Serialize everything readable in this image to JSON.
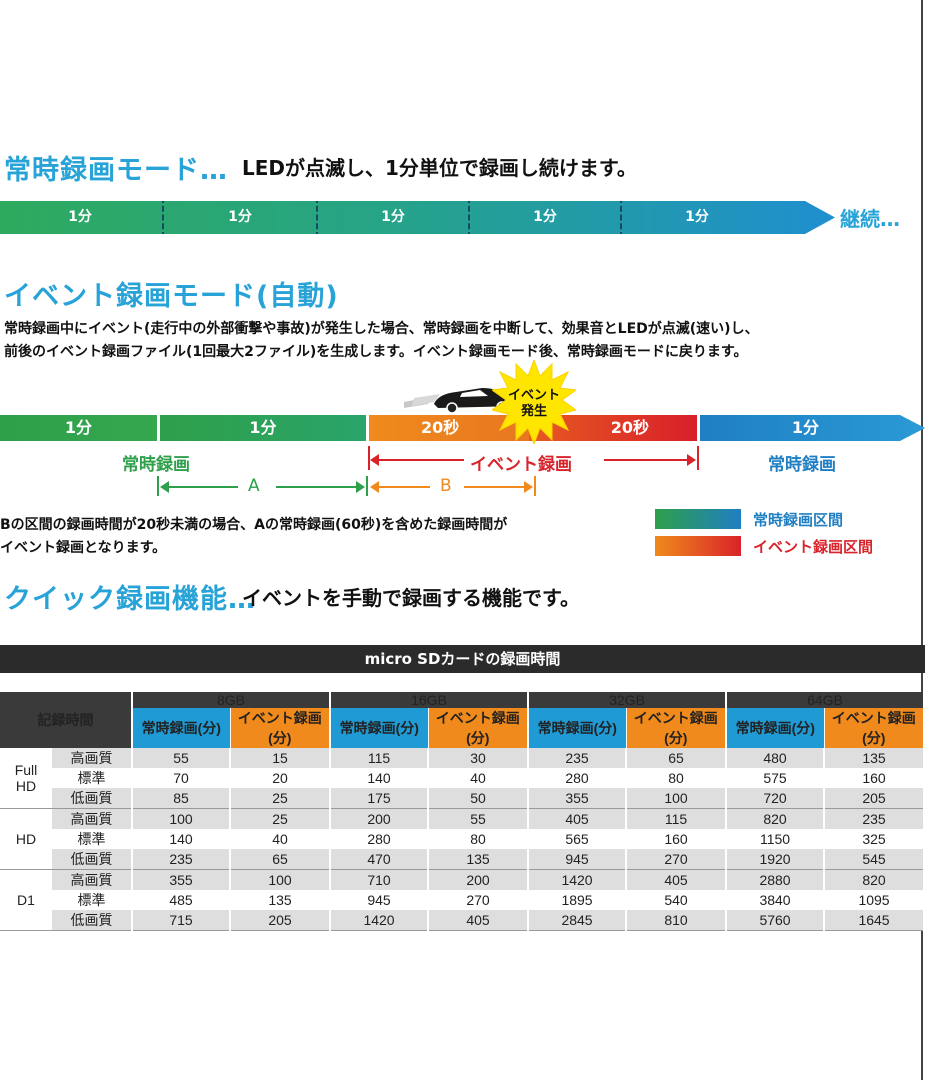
{
  "section1": {
    "title": "常時録画モード…",
    "description": "LEDが点滅し、1分単位で録画し続けます。",
    "segments": [
      "1分",
      "1分",
      "1分",
      "1分",
      "1分"
    ],
    "continue_label": "継続…"
  },
  "section2": {
    "title": "イベント録画モード(自動)",
    "paragraph_line1": "常時録画中にイベント(走行中の外部衝撃や事故)が発生した場合、常時録画を中断して、効果音とLEDが点滅(速い)し、",
    "paragraph_line2": "前後のイベント録画ファイル(1回最大2ファイル)を生成します。イベント録画モード後、常時録画モードに戻ります。",
    "timeline": {
      "seg1": "1分",
      "seg2": "1分",
      "seg3": "20秒",
      "seg4": "20秒",
      "seg5": "1分",
      "burst_line1": "イベント",
      "burst_line2": "発生",
      "label_left": "常時録画",
      "label_event": "イベント録画",
      "label_right": "常時録画",
      "marker_a": "A",
      "marker_b": "B"
    },
    "note_line1": "Bの区間の録画時間が20秒未満の場合、Aの常時録画(60秒)を含めた録画時間が",
    "note_line2": "イベント録画となります。",
    "legend": [
      {
        "label": "常時録画区間",
        "color": "#1f8fcf"
      },
      {
        "label": "イベント録画区間",
        "color": "#d9232a"
      }
    ]
  },
  "section3": {
    "title": "クイック録画機能…",
    "description": "イベントを手動で録画する機能です。"
  },
  "table": {
    "title": "micro SDカードの録画時間",
    "corner_label": "記録時間",
    "capacities": [
      "8GB",
      "16GB",
      "32GB",
      "64GB"
    ],
    "col_normal": "常時録画(分)",
    "col_event": "イベント録画(分)",
    "groups": [
      {
        "resolution": "Full HD",
        "rows": [
          {
            "quality": "高画質",
            "values": [
              "55",
              "15",
              "115",
              "30",
              "235",
              "65",
              "480",
              "135"
            ]
          },
          {
            "quality": "標準",
            "values": [
              "70",
              "20",
              "140",
              "40",
              "280",
              "80",
              "575",
              "160"
            ]
          },
          {
            "quality": "低画質",
            "values": [
              "85",
              "25",
              "175",
              "50",
              "355",
              "100",
              "720",
              "205"
            ]
          }
        ]
      },
      {
        "resolution": "HD",
        "rows": [
          {
            "quality": "高画質",
            "values": [
              "100",
              "25",
              "200",
              "55",
              "405",
              "115",
              "820",
              "235"
            ]
          },
          {
            "quality": "標準",
            "values": [
              "140",
              "40",
              "280",
              "80",
              "565",
              "160",
              "1150",
              "325"
            ]
          },
          {
            "quality": "低画質",
            "values": [
              "235",
              "65",
              "470",
              "135",
              "945",
              "270",
              "1920",
              "545"
            ]
          }
        ]
      },
      {
        "resolution": "D1",
        "rows": [
          {
            "quality": "高画質",
            "values": [
              "355",
              "100",
              "710",
              "200",
              "1420",
              "405",
              "2880",
              "820"
            ]
          },
          {
            "quality": "標準",
            "values": [
              "485",
              "135",
              "945",
              "270",
              "1895",
              "540",
              "3840",
              "1095"
            ]
          },
          {
            "quality": "低画質",
            "values": [
              "715",
              "205",
              "1420",
              "405",
              "2845",
              "810",
              "5760",
              "1645"
            ]
          }
        ]
      }
    ]
  }
}
